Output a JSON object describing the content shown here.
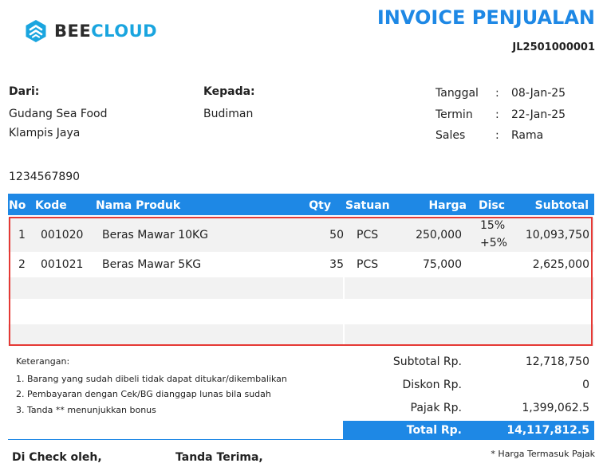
{
  "logo": {
    "part1": "BEE",
    "part2": "CLOUD",
    "icon": "beecloud-hexagon-icon"
  },
  "title": "INVOICE PENJUALAN",
  "invoice_no": "JL2501000001",
  "from": {
    "label": "Dari:",
    "line1": "Gudang  Sea Food",
    "line2": "Klampis Jaya",
    "phone": "1234567890"
  },
  "to": {
    "label": "Kepada:",
    "name": "Budiman"
  },
  "meta": [
    {
      "label": "Tanggal",
      "sep": ":",
      "value": "08-Jan-25"
    },
    {
      "label": "Termin",
      "sep": ":",
      "value": "22-Jan-25"
    },
    {
      "label": "Sales",
      "sep": ":",
      "value": "Rama"
    }
  ],
  "table": {
    "headers": {
      "no": "No",
      "kode": "Kode",
      "nama": "Nama Produk",
      "qty": "Qty",
      "satuan": "Satuan",
      "harga": "Harga",
      "disc": "Disc",
      "subtotal": "Subtotal"
    },
    "rows": [
      {
        "no": "1",
        "kode": "001020",
        "nama": "Beras Mawar 10KG",
        "qty": "50",
        "satuan": "PCS",
        "harga": "250,000",
        "disc1": "15%",
        "disc2": "+5%",
        "subtotal": "10,093,750"
      },
      {
        "no": "2",
        "kode": "001021",
        "nama": "Beras Mawar 5KG",
        "qty": "35",
        "satuan": "PCS",
        "harga": "75,000",
        "disc1": "",
        "disc2": "",
        "subtotal": "2,625,000"
      }
    ]
  },
  "notes": {
    "title": "Keterangan:",
    "items": [
      "1. Barang yang sudah dibeli tidak dapat ditukar/dikembalikan",
      "2. Pembayaran dengan Cek/BG dianggap lunas bila sudah",
      "3. Tanda ** menunjukkan bonus"
    ]
  },
  "summary": {
    "subtotal_label": "Subtotal Rp.",
    "subtotal_value": "12,718,750",
    "diskon_label": "Diskon Rp.",
    "diskon_value": "0",
    "pajak_label": "Pajak Rp.",
    "pajak_value": "1,399,062.5",
    "total_label": "Total Rp.",
    "total_value": "14,117,812.5"
  },
  "footer": {
    "checked_by": "Di Check oleh,",
    "received_by": "Tanda Terima,",
    "tax_note": "* Harga Termasuk Pajak"
  },
  "colors": {
    "accent": "#1e88e5",
    "highlight": "#e53935",
    "logo_cloud": "#1aa5df"
  }
}
